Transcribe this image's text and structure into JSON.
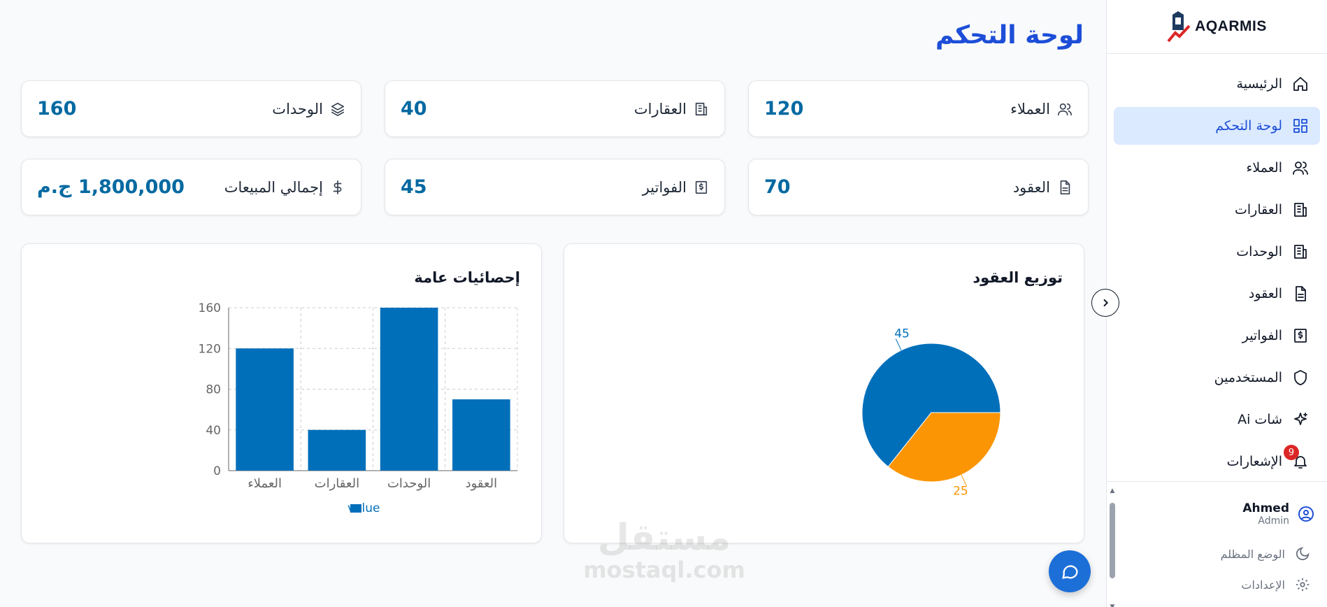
{
  "app": {
    "name": "AQARMIS"
  },
  "page": {
    "title": "لوحة التحكم"
  },
  "sidebar": {
    "items": [
      {
        "label": "الرئيسية",
        "icon": "home-icon",
        "active": false
      },
      {
        "label": "لوحة التحكم",
        "icon": "dashboard-icon",
        "active": true
      },
      {
        "label": "العملاء",
        "icon": "users-icon",
        "active": false
      },
      {
        "label": "العقارات",
        "icon": "building-icon",
        "active": false
      },
      {
        "label": "الوحدات",
        "icon": "building-icon",
        "active": false
      },
      {
        "label": "العقود",
        "icon": "file-icon",
        "active": false
      },
      {
        "label": "الفواتير",
        "icon": "invoice-icon",
        "active": false
      },
      {
        "label": "المستخدمين",
        "icon": "shield-icon",
        "active": false
      },
      {
        "label": "شات Ai",
        "icon": "sparkles-icon",
        "active": false
      },
      {
        "label": "الإشعارات",
        "icon": "bell-icon",
        "active": false,
        "badge": "9"
      }
    ],
    "user": {
      "name": "Ahmed",
      "role": "Admin"
    },
    "dark_mode_label": "الوضع المظلم",
    "settings_label": "الإعدادات"
  },
  "stats": [
    {
      "label": "العملاء",
      "value": "120",
      "icon": "users-icon"
    },
    {
      "label": "العقارات",
      "value": "40",
      "icon": "building-icon"
    },
    {
      "label": "الوحدات",
      "value": "160",
      "icon": "layers-icon"
    },
    {
      "label": "العقود",
      "value": "70",
      "icon": "file-icon"
    },
    {
      "label": "الفواتير",
      "value": "45",
      "icon": "invoice-icon"
    },
    {
      "label": "إجمالي المبيعات",
      "value": "1,800,000 ج.م",
      "icon": "dollar-icon"
    }
  ],
  "panels": {
    "pie_title": "توزيع العقود",
    "bar_title": "إحصائيات عامة"
  },
  "chart_data": [
    {
      "type": "bar",
      "title": "إحصائيات عامة",
      "categories": [
        "العملاء",
        "العقارات",
        "الوحدات",
        "العقود"
      ],
      "series": [
        {
          "name": "value",
          "values": [
            120,
            40,
            160,
            70
          ]
        }
      ],
      "ylim": [
        0,
        160
      ],
      "yticks": [
        0,
        40,
        80,
        120,
        160
      ],
      "grid": true,
      "legend": "bottom",
      "color": "#006fba"
    },
    {
      "type": "pie",
      "title": "توزيع العقود",
      "slices": [
        {
          "value": 45,
          "label": "45",
          "color": "#006fba"
        },
        {
          "value": 25,
          "label": "25",
          "color": "#fb9503"
        }
      ]
    }
  ],
  "colors": {
    "accent": "#1d4ed8",
    "value": "#0369a1",
    "active_bg": "#dbeafe"
  },
  "watermark": {
    "line1": "مستقل",
    "line2": "mostaql.com"
  }
}
